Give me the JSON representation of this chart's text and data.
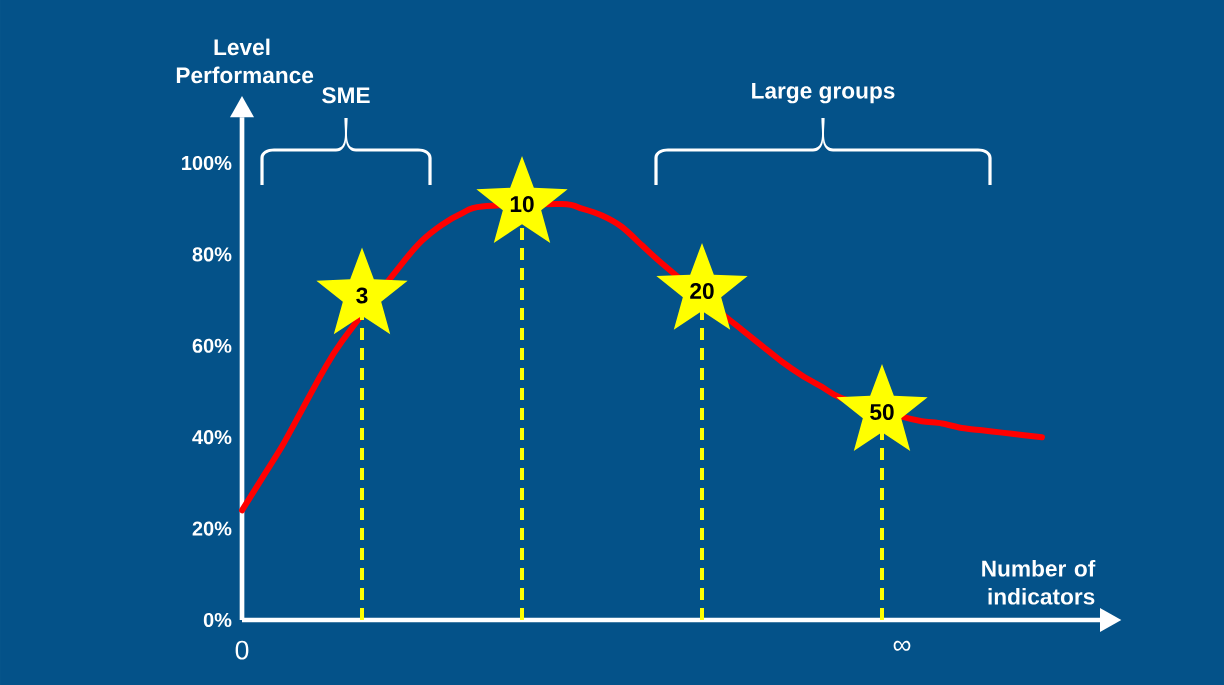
{
  "chart_data": {
    "type": "line",
    "ylabel": "Level Performance",
    "xlabel": "Number of indicators",
    "ylim": [
      0,
      110
    ],
    "categories": [
      "0",
      null,
      null,
      null,
      null,
      null,
      null,
      null,
      null,
      null,
      null,
      null,
      null,
      null,
      null,
      null,
      null,
      null,
      null,
      null,
      null,
      null,
      null,
      null,
      null,
      null,
      null,
      null,
      null,
      null,
      null,
      null,
      null,
      "∞",
      null,
      null,
      null,
      null,
      null,
      null,
      null
    ],
    "yticks": [
      {
        "value": 0,
        "label": "0%"
      },
      {
        "value": 20,
        "label": "20%"
      },
      {
        "value": 40,
        "label": "40%"
      },
      {
        "value": 60,
        "label": "60%"
      },
      {
        "value": 80,
        "label": "80%"
      },
      {
        "value": 100,
        "label": "100%"
      }
    ],
    "annotations": [
      "SME",
      "Large groups",
      "3",
      "10",
      "20",
      "50"
    ],
    "series": [
      {
        "color": "#ff0000",
        "values": [
          24,
          31,
          38,
          46,
          54,
          61,
          null,
          null,
          78,
          83,
          86.5,
          89,
          90.5,
          null,
          null,
          null,
          91,
          90,
          88.5,
          86,
          82,
          78,
          null,
          null,
          67,
          63.5,
          60,
          56.5,
          53.5,
          51,
          48.5,
          null,
          null,
          44.5,
          43.5,
          43,
          42,
          41.5,
          41,
          40.5,
          40
        ]
      },
      {
        "type": "lollipop",
        "color": "#ffff00",
        "marker": "star",
        "line_style": "dashed",
        "values": [
          null,
          null,
          null,
          null,
          null,
          null,
          71,
          null,
          null,
          null,
          null,
          null,
          null,
          null,
          91,
          null,
          null,
          null,
          null,
          null,
          null,
          null,
          null,
          72,
          null,
          null,
          null,
          null,
          null,
          null,
          null,
          null,
          45.5,
          null,
          null,
          null,
          null,
          null,
          null,
          null,
          null
        ]
      }
    ]
  }
}
